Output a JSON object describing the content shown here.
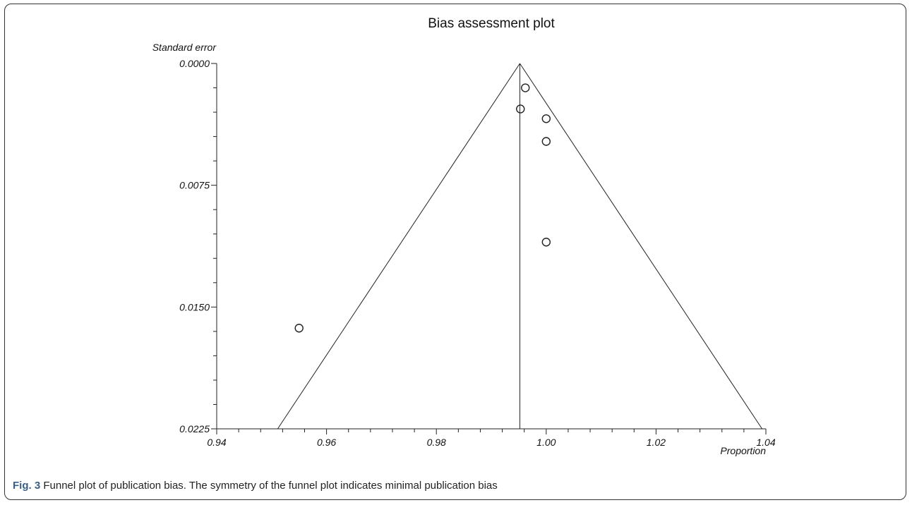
{
  "caption": {
    "label": "Fig. 3",
    "text": "Funnel plot of publication bias. The symmetry of the funnel plot indicates minimal publication bias"
  },
  "chart_data": {
    "type": "scatter",
    "title": "Bias assessment plot",
    "xlabel": "Proportion",
    "ylabel": "Standard error",
    "xlim": [
      0.94,
      1.04
    ],
    "ylim": [
      0.0,
      0.0225
    ],
    "y_inverted": true,
    "x_ticks": [
      "0.94",
      "0.96",
      "0.98",
      "1.00",
      "1.02",
      "1.04"
    ],
    "y_ticks": [
      "0.0000",
      "0.0075",
      "0.0150",
      "0.0225"
    ],
    "pooled_estimate": 0.9952,
    "funnel": {
      "apex": [
        0.9952,
        0.0
      ],
      "base_left": [
        0.9511,
        0.0225
      ],
      "base_right": [
        1.0393,
        0.0225
      ]
    },
    "points": [
      {
        "x": 0.9962,
        "y": 0.0015
      },
      {
        "x": 0.9953,
        "y": 0.0028
      },
      {
        "x": 1.0,
        "y": 0.0034
      },
      {
        "x": 1.0,
        "y": 0.0048
      },
      {
        "x": 1.0,
        "y": 0.011
      },
      {
        "x": 0.955,
        "y": 0.0163
      }
    ],
    "marker": "open-circle",
    "line_color": "#222222",
    "grid": false
  }
}
